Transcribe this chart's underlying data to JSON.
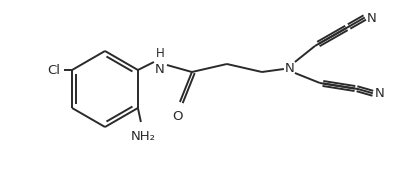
{
  "background": "#ffffff",
  "line_color": "#2a2a2a",
  "line_width": 1.4,
  "font_size": 8.5,
  "figsize": [
    4.02,
    1.79
  ],
  "dpi": 100,
  "xlim": [
    0,
    402
  ],
  "ylim": [
    0,
    179
  ]
}
